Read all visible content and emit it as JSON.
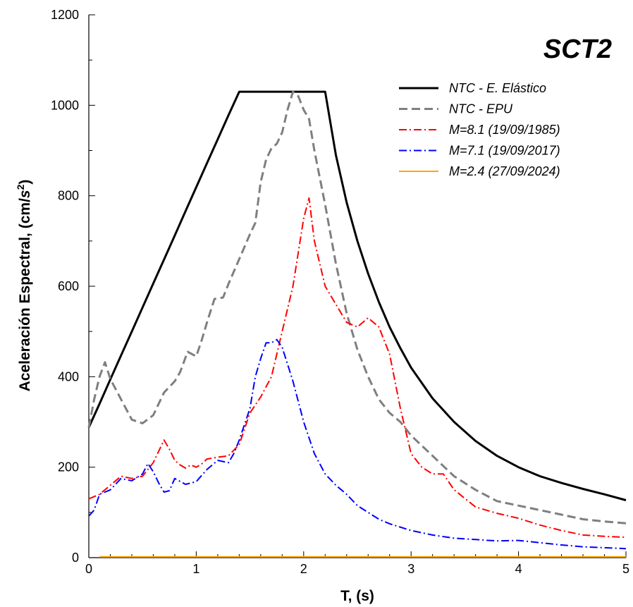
{
  "chart_data": {
    "type": "line",
    "title": "SCT2",
    "xlabel": "T, (s)",
    "ylabel_main": "Aceleración Espectral, (cm/",
    "ylabel_unit_base": "s",
    "ylabel_unit_exp": "2",
    "ylabel_close": ")",
    "xlim": [
      0,
      5
    ],
    "ylim": [
      0,
      1200
    ],
    "x_ticks": [
      0,
      1,
      2,
      3,
      4,
      5
    ],
    "y_ticks": [
      0,
      200,
      400,
      600,
      800,
      1000,
      1200
    ],
    "legend_position": "top-right",
    "grid": false,
    "series": [
      {
        "name": "NTC - E. Elástico",
        "color": "#000000",
        "style": "solid",
        "points": [
          [
            0,
            288
          ],
          [
            0.1,
            340
          ],
          [
            0.2,
            394
          ],
          [
            0.3,
            447
          ],
          [
            0.4,
            500
          ],
          [
            0.5,
            553
          ],
          [
            0.6,
            606
          ],
          [
            0.7,
            659
          ],
          [
            0.8,
            712
          ],
          [
            0.9,
            766
          ],
          [
            1.0,
            819
          ],
          [
            1.1,
            872
          ],
          [
            1.2,
            925
          ],
          [
            1.3,
            978
          ],
          [
            1.4,
            1030
          ],
          [
            1.52,
            1030
          ],
          [
            2.2,
            1030
          ],
          [
            2.3,
            890
          ],
          [
            2.4,
            785
          ],
          [
            2.5,
            700
          ],
          [
            2.6,
            628
          ],
          [
            2.7,
            565
          ],
          [
            2.8,
            510
          ],
          [
            2.9,
            463
          ],
          [
            3.0,
            420
          ],
          [
            3.2,
            352
          ],
          [
            3.4,
            300
          ],
          [
            3.6,
            258
          ],
          [
            3.8,
            225
          ],
          [
            4.0,
            200
          ],
          [
            4.2,
            180
          ],
          [
            4.4,
            165
          ],
          [
            4.6,
            152
          ],
          [
            4.8,
            140
          ],
          [
            5.0,
            127
          ]
        ]
      },
      {
        "name": "NTC - EPU",
        "color": "#7f7f7f",
        "style": "dashed",
        "points": [
          [
            0,
            288
          ],
          [
            0.05,
            350
          ],
          [
            0.1,
            400
          ],
          [
            0.15,
            432
          ],
          [
            0.2,
            395
          ],
          [
            0.3,
            350
          ],
          [
            0.4,
            305
          ],
          [
            0.5,
            297
          ],
          [
            0.6,
            315
          ],
          [
            0.7,
            365
          ],
          [
            0.8,
            390
          ],
          [
            0.85,
            410
          ],
          [
            0.92,
            455
          ],
          [
            1.0,
            445
          ],
          [
            1.05,
            480
          ],
          [
            1.1,
            520
          ],
          [
            1.17,
            572
          ],
          [
            1.25,
            575
          ],
          [
            1.3,
            605
          ],
          [
            1.4,
            660
          ],
          [
            1.5,
            715
          ],
          [
            1.55,
            740
          ],
          [
            1.6,
            830
          ],
          [
            1.65,
            880
          ],
          [
            1.7,
            905
          ],
          [
            1.75,
            915
          ],
          [
            1.8,
            940
          ],
          [
            1.85,
            990
          ],
          [
            1.9,
            1030
          ],
          [
            1.95,
            1020
          ],
          [
            2.0,
            990
          ],
          [
            2.05,
            970
          ],
          [
            2.1,
            900
          ],
          [
            2.2,
            780
          ],
          [
            2.3,
            650
          ],
          [
            2.4,
            540
          ],
          [
            2.5,
            460
          ],
          [
            2.6,
            400
          ],
          [
            2.7,
            350
          ],
          [
            2.8,
            320
          ],
          [
            2.9,
            300
          ],
          [
            3.0,
            270
          ],
          [
            3.2,
            225
          ],
          [
            3.4,
            180
          ],
          [
            3.6,
            150
          ],
          [
            3.8,
            125
          ],
          [
            4.0,
            115
          ],
          [
            4.2,
            105
          ],
          [
            4.4,
            95
          ],
          [
            4.6,
            85
          ],
          [
            4.8,
            80
          ],
          [
            5.0,
            76
          ]
        ]
      },
      {
        "name": "M=8.1 (19/09/1985)",
        "color": "#ff0000",
        "style": "dashdot",
        "points": [
          [
            0,
            130
          ],
          [
            0.1,
            140
          ],
          [
            0.2,
            160
          ],
          [
            0.3,
            180
          ],
          [
            0.4,
            175
          ],
          [
            0.5,
            180
          ],
          [
            0.6,
            210
          ],
          [
            0.7,
            260
          ],
          [
            0.75,
            240
          ],
          [
            0.8,
            215
          ],
          [
            0.85,
            205
          ],
          [
            0.9,
            198
          ],
          [
            0.95,
            205
          ],
          [
            1.0,
            200
          ],
          [
            1.05,
            207
          ],
          [
            1.1,
            218
          ],
          [
            1.2,
            222
          ],
          [
            1.3,
            225
          ],
          [
            1.4,
            250
          ],
          [
            1.5,
            320
          ],
          [
            1.6,
            355
          ],
          [
            1.7,
            400
          ],
          [
            1.8,
            500
          ],
          [
            1.9,
            600
          ],
          [
            2.0,
            750
          ],
          [
            2.05,
            795
          ],
          [
            2.1,
            700
          ],
          [
            2.2,
            600
          ],
          [
            2.3,
            560
          ],
          [
            2.4,
            520
          ],
          [
            2.5,
            510
          ],
          [
            2.6,
            530
          ],
          [
            2.7,
            510
          ],
          [
            2.8,
            450
          ],
          [
            2.9,
            330
          ],
          [
            3.0,
            230
          ],
          [
            3.1,
            200
          ],
          [
            3.2,
            185
          ],
          [
            3.3,
            185
          ],
          [
            3.4,
            150
          ],
          [
            3.6,
            112
          ],
          [
            3.8,
            98
          ],
          [
            4.0,
            87
          ],
          [
            4.2,
            72
          ],
          [
            4.4,
            60
          ],
          [
            4.6,
            50
          ],
          [
            4.8,
            47
          ],
          [
            5.0,
            45
          ]
        ]
      },
      {
        "name": "M=7.1 (19/09/2017)",
        "color": "#0000ff",
        "style": "dashdot",
        "points": [
          [
            0,
            92
          ],
          [
            0.05,
            105
          ],
          [
            0.1,
            140
          ],
          [
            0.2,
            150
          ],
          [
            0.3,
            175
          ],
          [
            0.4,
            170
          ],
          [
            0.5,
            185
          ],
          [
            0.55,
            208
          ],
          [
            0.6,
            190
          ],
          [
            0.65,
            165
          ],
          [
            0.7,
            145
          ],
          [
            0.75,
            148
          ],
          [
            0.8,
            175
          ],
          [
            0.9,
            162
          ],
          [
            1.0,
            168
          ],
          [
            1.1,
            195
          ],
          [
            1.2,
            215
          ],
          [
            1.3,
            210
          ],
          [
            1.35,
            230
          ],
          [
            1.4,
            260
          ],
          [
            1.5,
            330
          ],
          [
            1.55,
            400
          ],
          [
            1.6,
            440
          ],
          [
            1.65,
            475
          ],
          [
            1.7,
            475
          ],
          [
            1.75,
            482
          ],
          [
            1.8,
            465
          ],
          [
            1.9,
            390
          ],
          [
            2.0,
            300
          ],
          [
            2.1,
            230
          ],
          [
            2.2,
            185
          ],
          [
            2.3,
            160
          ],
          [
            2.4,
            140
          ],
          [
            2.5,
            115
          ],
          [
            2.6,
            100
          ],
          [
            2.7,
            85
          ],
          [
            2.8,
            75
          ],
          [
            3.0,
            60
          ],
          [
            3.2,
            50
          ],
          [
            3.4,
            43
          ],
          [
            3.6,
            40
          ],
          [
            3.8,
            37
          ],
          [
            4.0,
            38
          ],
          [
            4.2,
            33
          ],
          [
            4.4,
            28
          ],
          [
            4.6,
            24
          ],
          [
            4.8,
            22
          ],
          [
            5.0,
            20
          ]
        ]
      },
      {
        "name": "M=2.4 (27/09/2024)",
        "color": "#ffa500",
        "style": "solid",
        "points": [
          [
            0.1,
            2
          ],
          [
            1.0,
            2
          ],
          [
            2.0,
            2
          ],
          [
            3.0,
            2
          ],
          [
            4.0,
            2
          ],
          [
            5.0,
            2
          ]
        ]
      }
    ]
  }
}
